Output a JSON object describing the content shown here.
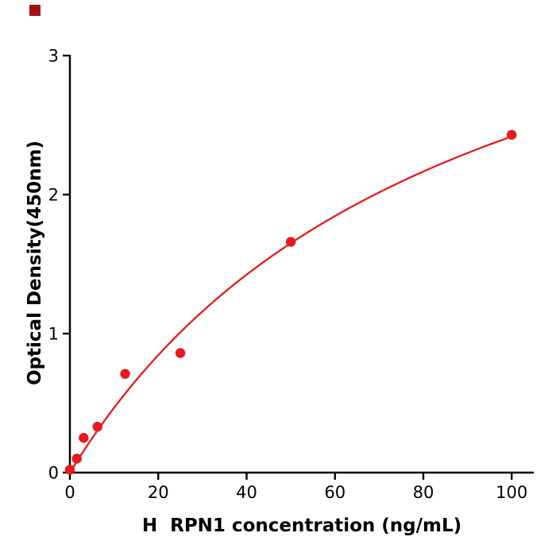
{
  "chart_data": {
    "type": "scatter",
    "title": "",
    "xlabel": "H  RPN1 concentration (ng/mL)",
    "ylabel": "Optical Density(450nm)",
    "series": [
      {
        "x": [
          0,
          1.56,
          3.12,
          6.25,
          12.5,
          25,
          50,
          100
        ],
        "y": [
          0.02,
          0.1,
          0.25,
          0.33,
          0.71,
          0.86,
          1.66,
          2.43
        ]
      }
    ],
    "xlim": [
      0,
      105
    ],
    "ylim": [
      0,
      3
    ],
    "xticks": [
      0,
      20,
      40,
      60,
      80,
      100
    ],
    "yticks": [
      0,
      1,
      2,
      3
    ],
    "grid": false,
    "legend_position": "none",
    "marker_color": "#e8191c",
    "line_color": "#e8191c",
    "axis_color": "#000000",
    "background_color": "#ffffff",
    "corner_mark_color": "#a11215",
    "fit_type": "saturation-curve"
  }
}
